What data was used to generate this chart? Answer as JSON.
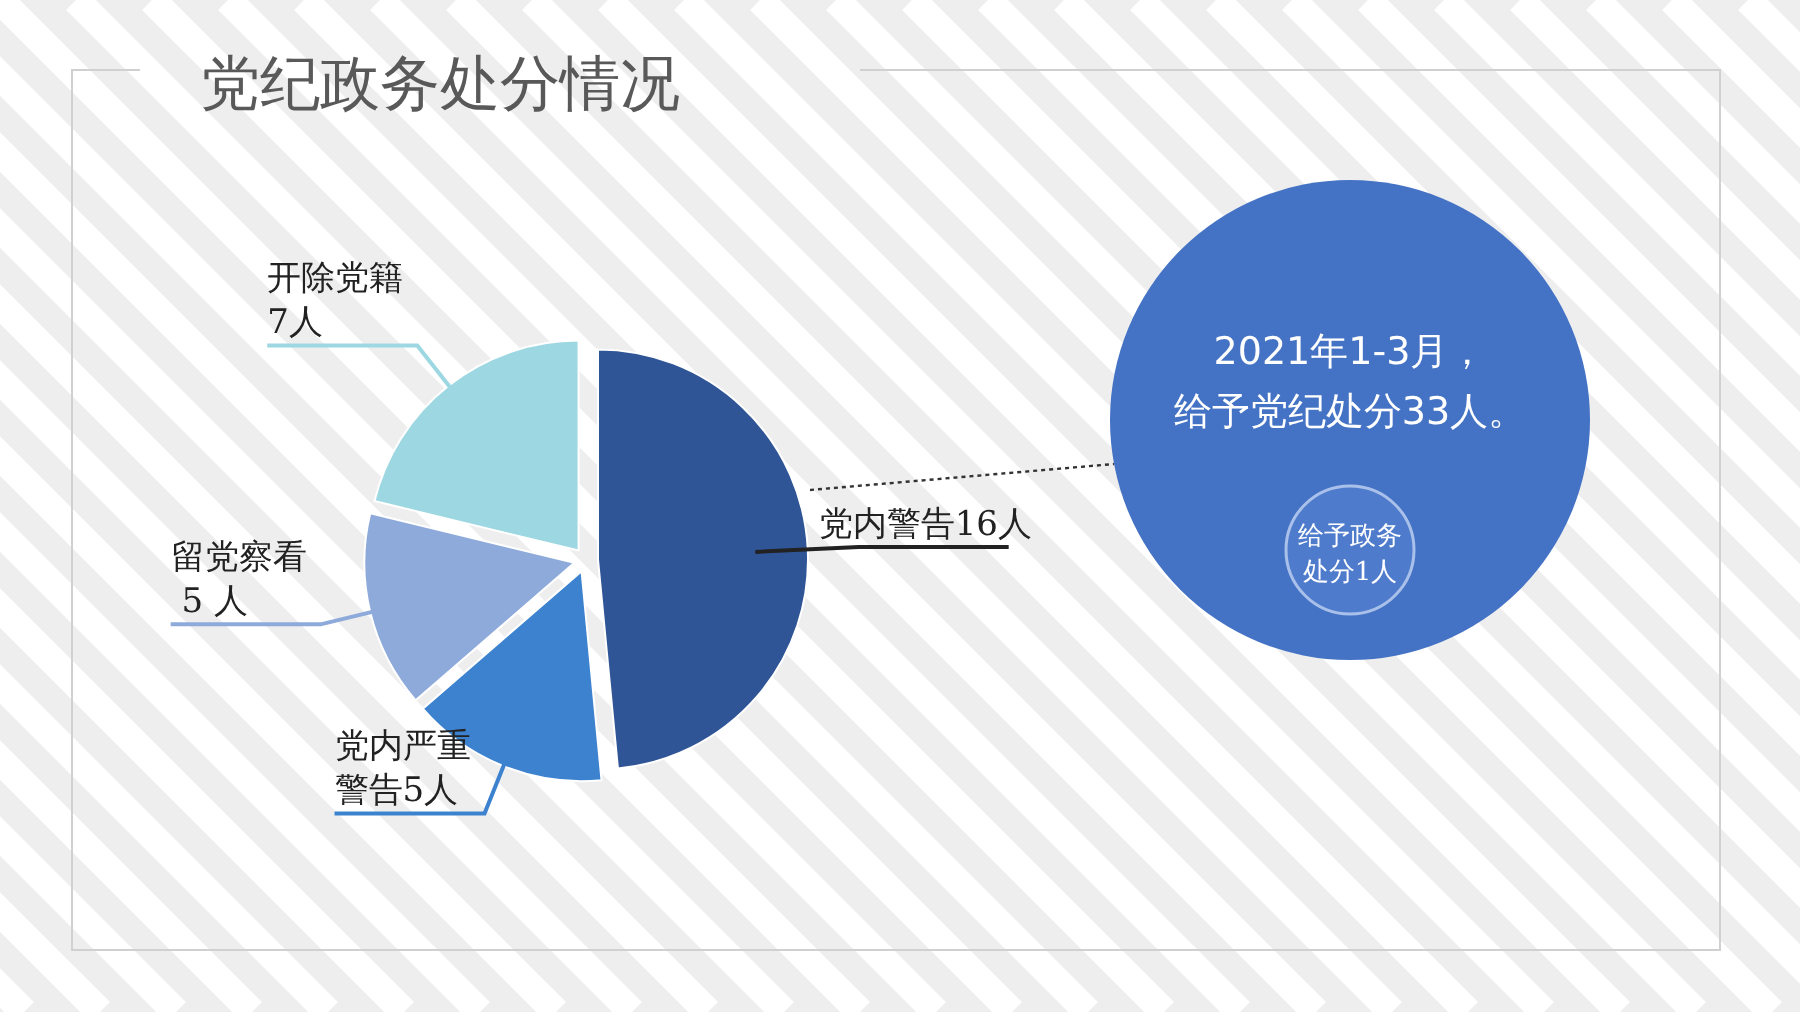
{
  "chart_data": [
    {
      "type": "pie",
      "title": "党纪政务处分情况",
      "categories": [
        "党内警告16人",
        "党内严重警告5人",
        "留党察看 5 人",
        "开除党籍7人"
      ],
      "values": [
        16,
        5,
        5,
        7
      ],
      "colors": [
        "#2f5597",
        "#3c82cf",
        "#8eaadb",
        "#9dd8e2"
      ]
    },
    {
      "type": "other",
      "annotations": [
        "2021年1-3月，给予党纪处分33人。",
        "给予政务处分1人"
      ]
    }
  ]
}
